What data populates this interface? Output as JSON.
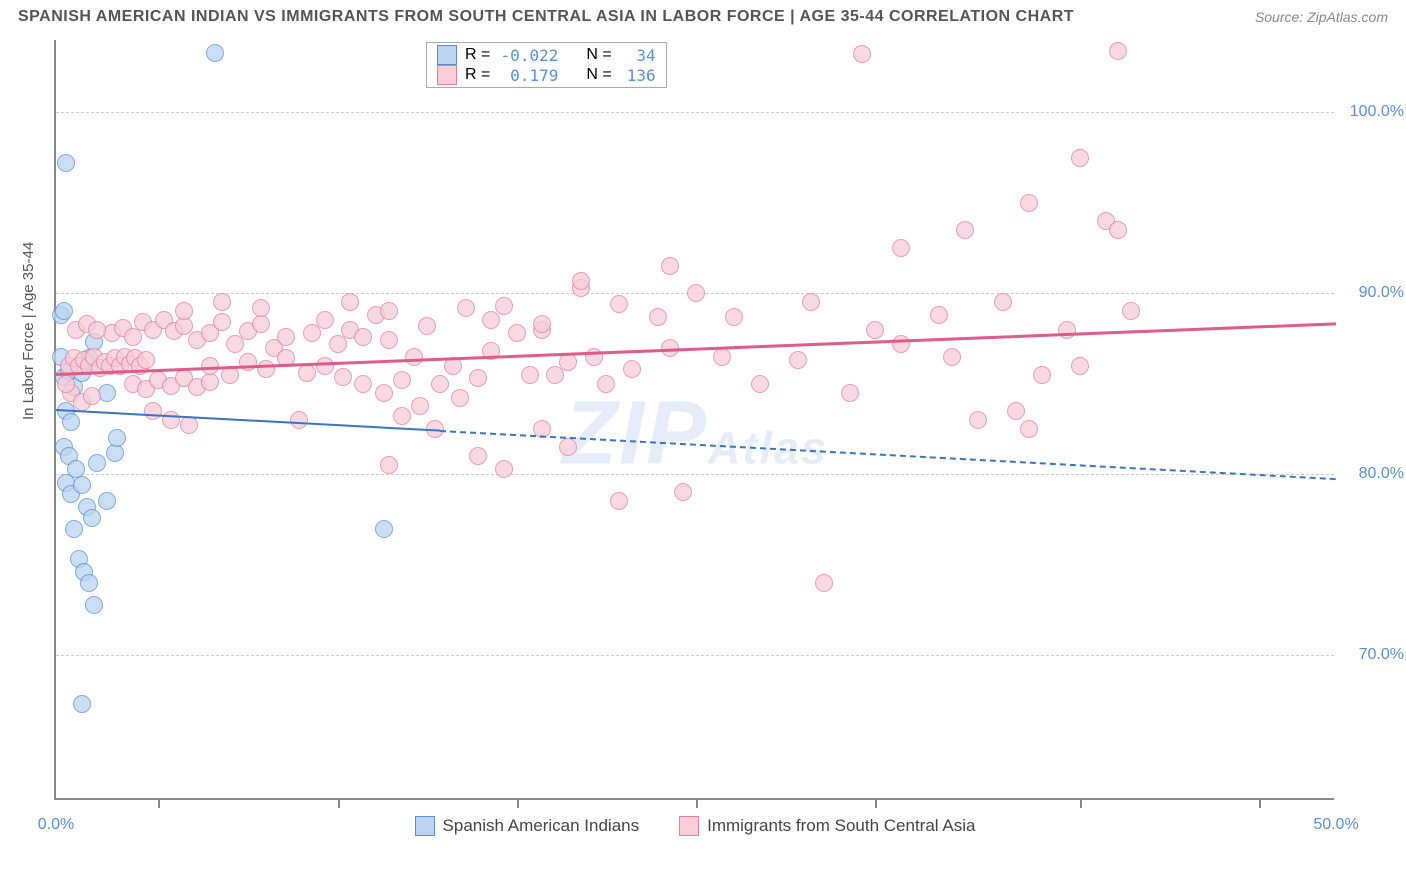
{
  "title": "SPANISH AMERICAN INDIAN VS IMMIGRANTS FROM SOUTH CENTRAL ASIA IN LABOR FORCE | AGE 35-44 CORRELATION CHART",
  "source": "Source: ZipAtlas.com",
  "y_axis_title": "In Labor Force | Age 35-44",
  "watermark_big": "ZIP",
  "watermark_small": "Atlas",
  "chart": {
    "type": "scatter",
    "xlim": [
      0,
      50
    ],
    "ylim": [
      62,
      104
    ],
    "x_ticks": [
      0,
      50
    ],
    "x_tick_labels": [
      "0.0%",
      "50.0%"
    ],
    "x_minor_ticks": [
      4,
      11,
      18,
      25,
      32,
      40,
      47
    ],
    "y_ticks": [
      70,
      80,
      90,
      100
    ],
    "y_tick_labels": [
      "70.0%",
      "80.0%",
      "90.0%",
      "100.0%"
    ],
    "background_color": "#ffffff",
    "grid_color": "#cccccc",
    "axis_color": "#888888",
    "tick_label_color": "#5b8fd6",
    "marker_radius": 9,
    "marker_stroke_width": 1.5,
    "series": [
      {
        "name": "Spanish American Indians",
        "fill": "#bcd4f0",
        "stroke": "#5b8fd6",
        "r_value": "-0.022",
        "n_value": "34",
        "trend": {
          "x1": 0,
          "y1": 83.6,
          "x2": 50,
          "y2": 79.8,
          "solid_until_x": 15,
          "width": 2.5,
          "color": "#3b74c4"
        },
        "points": [
          [
            0.2,
            86.5
          ],
          [
            0.3,
            85.4
          ],
          [
            0.5,
            85.7
          ],
          [
            0.7,
            84.8
          ],
          [
            0.4,
            83.5
          ],
          [
            0.6,
            82.9
          ],
          [
            0.3,
            81.5
          ],
          [
            0.5,
            81.0
          ],
          [
            0.8,
            80.3
          ],
          [
            0.4,
            79.5
          ],
          [
            0.6,
            78.9
          ],
          [
            0.2,
            88.8
          ],
          [
            0.3,
            89.0
          ],
          [
            1.0,
            85.6
          ],
          [
            1.2,
            86.2
          ],
          [
            1.3,
            86.4
          ],
          [
            1.5,
            87.3
          ],
          [
            1.6,
            80.6
          ],
          [
            1.0,
            79.4
          ],
          [
            1.2,
            78.2
          ],
          [
            1.4,
            77.6
          ],
          [
            0.7,
            77.0
          ],
          [
            0.9,
            75.3
          ],
          [
            1.1,
            74.6
          ],
          [
            1.3,
            74.0
          ],
          [
            1.5,
            72.8
          ],
          [
            2.0,
            84.5
          ],
          [
            2.3,
            81.2
          ],
          [
            0.4,
            97.2
          ],
          [
            1.0,
            67.3
          ],
          [
            6.2,
            103.3
          ],
          [
            12.8,
            77.0
          ],
          [
            2.0,
            78.5
          ],
          [
            2.4,
            82.0
          ]
        ]
      },
      {
        "name": "Immigrants from South Central Asia",
        "fill": "#f7cdd8",
        "stroke": "#e77da0",
        "r_value": "0.179",
        "n_value": "136",
        "trend": {
          "x1": 0,
          "y1": 85.6,
          "x2": 50,
          "y2": 88.4,
          "solid_until_x": 50,
          "width": 3,
          "color": "#e05a8a"
        },
        "points": [
          [
            0.5,
            86.0
          ],
          [
            0.7,
            86.4
          ],
          [
            0.9,
            86.0
          ],
          [
            1.1,
            86.3
          ],
          [
            1.3,
            86.0
          ],
          [
            1.5,
            86.5
          ],
          [
            1.7,
            85.9
          ],
          [
            1.9,
            86.2
          ],
          [
            2.1,
            86.0
          ],
          [
            2.3,
            86.4
          ],
          [
            2.5,
            86.0
          ],
          [
            2.7,
            86.5
          ],
          [
            2.9,
            86.1
          ],
          [
            3.1,
            86.4
          ],
          [
            3.3,
            86.0
          ],
          [
            3.5,
            86.3
          ],
          [
            2.2,
            87.8
          ],
          [
            2.6,
            88.1
          ],
          [
            3.0,
            87.6
          ],
          [
            3.4,
            88.4
          ],
          [
            3.8,
            88.0
          ],
          [
            4.2,
            88.5
          ],
          [
            4.6,
            87.9
          ],
          [
            5.0,
            88.2
          ],
          [
            3.0,
            85.0
          ],
          [
            3.5,
            84.7
          ],
          [
            4.0,
            85.2
          ],
          [
            4.5,
            84.9
          ],
          [
            5.0,
            85.3
          ],
          [
            5.5,
            84.8
          ],
          [
            6.0,
            85.1
          ],
          [
            5.5,
            87.4
          ],
          [
            6.0,
            87.8
          ],
          [
            6.5,
            88.4
          ],
          [
            7.0,
            87.2
          ],
          [
            7.5,
            87.9
          ],
          [
            8.0,
            88.3
          ],
          [
            8.5,
            87.0
          ],
          [
            9.0,
            87.6
          ],
          [
            6.0,
            86.0
          ],
          [
            6.8,
            85.5
          ],
          [
            7.5,
            86.2
          ],
          [
            8.2,
            85.8
          ],
          [
            9.0,
            86.4
          ],
          [
            9.8,
            85.6
          ],
          [
            10.5,
            86.0
          ],
          [
            11.2,
            85.4
          ],
          [
            10.0,
            87.8
          ],
          [
            10.5,
            88.5
          ],
          [
            11.0,
            87.2
          ],
          [
            11.5,
            88.0
          ],
          [
            12.0,
            87.6
          ],
          [
            12.5,
            88.8
          ],
          [
            13.0,
            87.4
          ],
          [
            12.0,
            85.0
          ],
          [
            12.8,
            84.5
          ],
          [
            13.5,
            85.2
          ],
          [
            14.2,
            83.8
          ],
          [
            15.0,
            85.0
          ],
          [
            15.8,
            84.2
          ],
          [
            16.5,
            85.3
          ],
          [
            11.5,
            89.5
          ],
          [
            13.0,
            89.0
          ],
          [
            14.5,
            88.2
          ],
          [
            16.0,
            89.2
          ],
          [
            17.0,
            88.5
          ],
          [
            18.0,
            87.8
          ],
          [
            19.0,
            88.0
          ],
          [
            14.0,
            86.5
          ],
          [
            15.5,
            86.0
          ],
          [
            17.0,
            86.8
          ],
          [
            18.5,
            85.5
          ],
          [
            20.0,
            86.2
          ],
          [
            21.5,
            85.0
          ],
          [
            17.5,
            89.3
          ],
          [
            19.0,
            88.3
          ],
          [
            20.5,
            90.3
          ],
          [
            22.0,
            89.4
          ],
          [
            23.5,
            88.7
          ],
          [
            25.0,
            90.0
          ],
          [
            19.5,
            85.5
          ],
          [
            21.0,
            86.5
          ],
          [
            22.5,
            85.8
          ],
          [
            24.0,
            87.0
          ],
          [
            19.0,
            82.5
          ],
          [
            20.0,
            81.5
          ],
          [
            22.0,
            78.5
          ],
          [
            24.5,
            79.0
          ],
          [
            16.5,
            81.0
          ],
          [
            17.5,
            80.3
          ],
          [
            26.0,
            86.5
          ],
          [
            27.5,
            85.0
          ],
          [
            24.0,
            91.5
          ],
          [
            26.5,
            88.7
          ],
          [
            29.0,
            86.3
          ],
          [
            31.0,
            84.5
          ],
          [
            33.0,
            87.2
          ],
          [
            35.0,
            86.5
          ],
          [
            36.0,
            83.0
          ],
          [
            37.5,
            83.5
          ],
          [
            38.5,
            85.5
          ],
          [
            38.0,
            82.5
          ],
          [
            40.0,
            86.0
          ],
          [
            31.5,
            103.2
          ],
          [
            41.5,
            103.4
          ],
          [
            33.0,
            92.5
          ],
          [
            35.5,
            93.5
          ],
          [
            38.0,
            95.0
          ],
          [
            40.0,
            97.5
          ],
          [
            41.0,
            94.0
          ],
          [
            41.5,
            93.5
          ],
          [
            30.0,
            74.0
          ],
          [
            20.5,
            90.7
          ],
          [
            13.0,
            80.5
          ],
          [
            5.0,
            89.0
          ],
          [
            6.5,
            89.5
          ],
          [
            8.0,
            89.2
          ],
          [
            3.8,
            83.5
          ],
          [
            4.5,
            83.0
          ],
          [
            5.2,
            82.7
          ],
          [
            0.8,
            88.0
          ],
          [
            1.2,
            88.3
          ],
          [
            1.6,
            88.0
          ],
          [
            0.6,
            84.5
          ],
          [
            1.0,
            84.0
          ],
          [
            1.4,
            84.3
          ],
          [
            0.4,
            85.0
          ],
          [
            13.5,
            83.2
          ],
          [
            14.8,
            82.5
          ],
          [
            9.5,
            83.0
          ],
          [
            29.5,
            89.5
          ],
          [
            32.0,
            88.0
          ],
          [
            34.5,
            88.8
          ],
          [
            37.0,
            89.5
          ],
          [
            39.5,
            88.0
          ],
          [
            42.0,
            89.0
          ]
        ]
      }
    ]
  },
  "stats_legend": {
    "rows": [
      {
        "swatch_fill": "#bcd4f0",
        "swatch_stroke": "#5b8fd6",
        "r_label": "R =",
        "r_val": "-0.022",
        "n_label": "N =",
        "n_val": "34"
      },
      {
        "swatch_fill": "#f7cdd8",
        "swatch_stroke": "#e77da0",
        "r_label": "R =",
        "r_val": "0.179",
        "n_label": "N =",
        "n_val": "136"
      }
    ]
  },
  "bottom_legend": {
    "items": [
      {
        "swatch_fill": "#bcd4f0",
        "swatch_stroke": "#5b8fd6",
        "label": "Spanish American Indians"
      },
      {
        "swatch_fill": "#f7cdd8",
        "swatch_stroke": "#e77da0",
        "label": "Immigrants from South Central Asia"
      }
    ]
  }
}
